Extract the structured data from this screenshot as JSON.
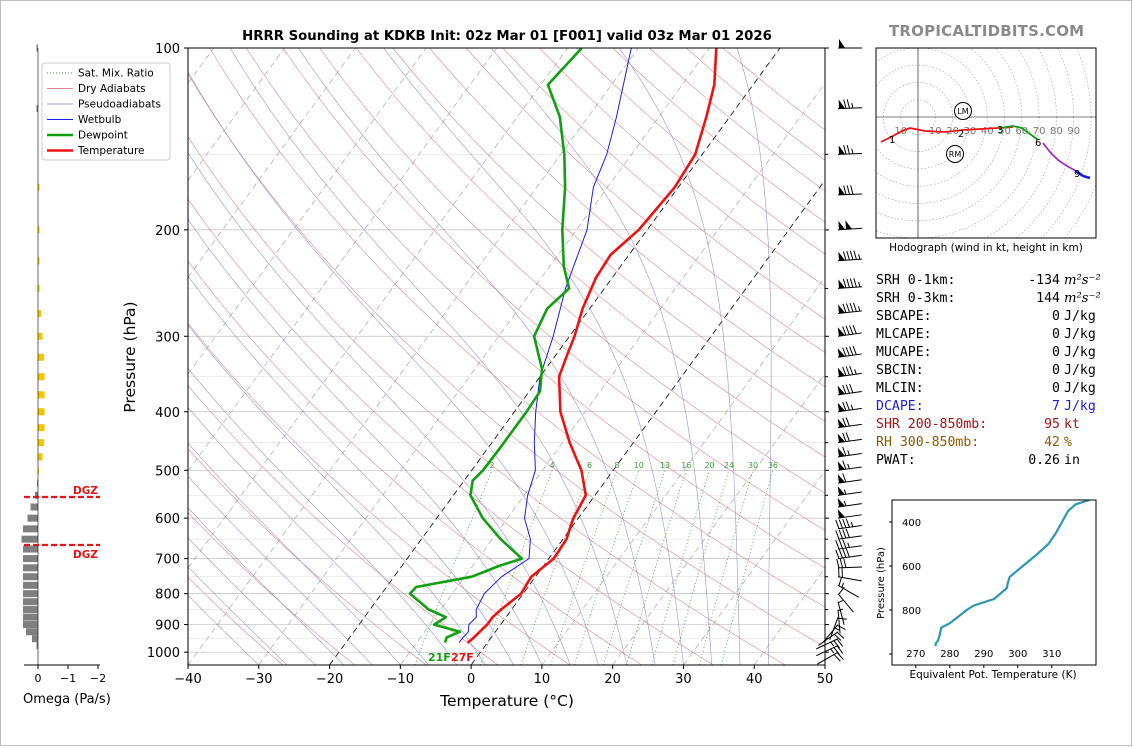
{
  "branding": {
    "site": "TROPICALTIDBITS.COM"
  },
  "colors": {
    "temperature": "#ee1111",
    "dewpoint": "#109f10",
    "wetbulb": "#1a1af0",
    "dry_adiabat": "#d35c6e",
    "moist_adiabat": "#8585b8",
    "mixing_ratio": "#3b9a3b",
    "isotherm_dash": "#000000",
    "hodo_low": "#ee1111",
    "hodo_mid": "#109f10",
    "hodo_upper": "#a030c0",
    "hodo_top": "#1a1af0",
    "theta_e": "#2e97b0",
    "omega_pos": "#f5c300",
    "omega_neg": "#7f7f7f",
    "dgz": "#ee1111",
    "dcape": "#1a1af0",
    "shear": "#aa1111",
    "rh": "#8a5a00"
  },
  "chart_data": [
    {
      "type": "line",
      "name": "skew-t",
      "title": "HRRR Sounding at KDKB Init: 02z Mar 01 [F001] valid 03z Mar 01 2026",
      "xlabel": "Temperature (°C)",
      "ylabel": "Pressure (hPa)",
      "xlim": [
        -40,
        50
      ],
      "ylim": [
        1050,
        100
      ],
      "y_scale": "log",
      "xticks": [
        -40,
        -30,
        -20,
        -10,
        0,
        10,
        20,
        30,
        40,
        50
      ],
      "xtick_labels": [
        "−40",
        "−30",
        "−20",
        "−10",
        "0",
        "10",
        "20",
        "30",
        "40",
        "50"
      ],
      "yticks": [
        100,
        200,
        300,
        400,
        500,
        600,
        700,
        800,
        900,
        1000
      ],
      "legend": [
        "Sat. Mix. Ratio",
        "Dry Adiabats",
        "Pseudoadiabats",
        "Wetbulb",
        "Dewpoint",
        "Temperature"
      ],
      "legend_position": "top-left",
      "mixing_ratio_labels": [
        "2",
        "4",
        "6",
        "8",
        "10",
        "13",
        "16",
        "20",
        "24",
        "30",
        "36"
      ],
      "mixing_ratio_values": [
        2,
        4,
        6,
        8,
        10,
        13,
        16,
        20,
        24,
        30,
        36
      ],
      "surface_labels": {
        "dewpoint": "21F",
        "temperature": "27F"
      },
      "series": [
        {
          "name": "Temperature",
          "values": [
            [
              964,
              -2.8
            ],
            [
              950,
              -2.5
            ],
            [
              925,
              -2.2
            ],
            [
              900,
              -1.9
            ],
            [
              875,
              -1.9
            ],
            [
              850,
              -1.5
            ],
            [
              800,
              -0.3
            ],
            [
              750,
              -0.6
            ],
            [
              700,
              0.7
            ],
            [
              650,
              0.5
            ],
            [
              600,
              -0.7
            ],
            [
              550,
              -1.3
            ],
            [
              500,
              -4.5
            ],
            [
              450,
              -9.0
            ],
            [
              400,
              -13.5
            ],
            [
              350,
              -17.3
            ],
            [
              320,
              -18.5
            ],
            [
              300,
              -19.3
            ],
            [
              270,
              -21.0
            ],
            [
              240,
              -22.3
            ],
            [
              220,
              -22.6
            ],
            [
              200,
              -21.2
            ],
            [
              170,
              -20.5
            ],
            [
              150,
              -21.0
            ],
            [
              130,
              -23.3
            ],
            [
              115,
              -25.5
            ],
            [
              100,
              -29.0
            ]
          ]
        },
        {
          "name": "Dewpoint",
          "values": [
            [
              964,
              -6.0
            ],
            [
              945,
              -6.3
            ],
            [
              925,
              -5.0
            ],
            [
              900,
              -9.4
            ],
            [
              875,
              -8.5
            ],
            [
              850,
              -11.7
            ],
            [
              800,
              -16.0
            ],
            [
              780,
              -15.8
            ],
            [
              750,
              -9.0
            ],
            [
              720,
              -6.3
            ],
            [
              700,
              -3.8
            ],
            [
              650,
              -8.8
            ],
            [
              600,
              -13.5
            ],
            [
              550,
              -17.6
            ],
            [
              520,
              -18.8
            ],
            [
              500,
              -18.4
            ],
            [
              460,
              -18.3
            ],
            [
              400,
              -18.3
            ],
            [
              370,
              -18.5
            ],
            [
              340,
              -20.5
            ],
            [
              300,
              -25.0
            ],
            [
              270,
              -26.0
            ],
            [
              250,
              -25.0
            ],
            [
              230,
              -28.0
            ],
            [
              200,
              -32.0
            ],
            [
              170,
              -36.0
            ],
            [
              150,
              -39.5
            ],
            [
              130,
              -44.0
            ],
            [
              115,
              -49.0
            ],
            [
              100,
              -48.0
            ]
          ]
        },
        {
          "name": "Wetbulb",
          "values": [
            [
              964,
              -4.0
            ],
            [
              950,
              -4.0
            ],
            [
              925,
              -3.8
            ],
            [
              900,
              -4.5
            ],
            [
              875,
              -4.2
            ],
            [
              850,
              -5.0
            ],
            [
              800,
              -5.5
            ],
            [
              750,
              -4.8
            ],
            [
              700,
              -2.8
            ],
            [
              650,
              -4.6
            ],
            [
              600,
              -7.6
            ],
            [
              550,
              -9.5
            ],
            [
              500,
              -11.0
            ],
            [
              450,
              -14.0
            ],
            [
              400,
              -17.0
            ],
            [
              350,
              -20.0
            ],
            [
              300,
              -22.3
            ],
            [
              250,
              -25.5
            ],
            [
              200,
              -28.5
            ],
            [
              170,
              -32.0
            ],
            [
              150,
              -33.5
            ],
            [
              130,
              -36.0
            ],
            [
              100,
              -41.0
            ]
          ]
        }
      ]
    },
    {
      "type": "line",
      "name": "hodograph",
      "xlabel": "Hodograph (wind in kt, height in km)",
      "ring_labels": [
        "10",
        "10",
        "20",
        "30",
        "40",
        "50",
        "60",
        "70",
        "80",
        "90"
      ],
      "height_labels": [
        "1",
        "2",
        "3",
        "6",
        "9"
      ],
      "markers": [
        "LM",
        "RM"
      ]
    },
    {
      "type": "line",
      "name": "theta-e",
      "xlabel": "Equivalent Pot. Temperature (K)",
      "ylabel": "Pressure (hPa)",
      "xlim": [
        263,
        323
      ],
      "ylim": [
        1050,
        300
      ],
      "xticks": [
        270,
        280,
        290,
        300,
        310
      ],
      "yticks": [
        400,
        600,
        800
      ],
      "series": [
        {
          "name": "theta-e",
          "values": [
            [
              964,
              275.8
            ],
            [
              950,
              275.9
            ],
            [
              940,
              276.5
            ],
            [
              920,
              276.9
            ],
            [
              900,
              277.2
            ],
            [
              880,
              277.5
            ],
            [
              860,
              280.0
            ],
            [
              800,
              285.0
            ],
            [
              780,
              287.0
            ],
            [
              750,
              293.0
            ],
            [
              700,
              296.8
            ],
            [
              680,
              297.0
            ],
            [
              650,
              297.6
            ],
            [
              600,
              301.5
            ],
            [
              550,
              305.4
            ],
            [
              500,
              309.0
            ],
            [
              450,
              311.2
            ],
            [
              400,
              313.0
            ],
            [
              350,
              314.8
            ],
            [
              320,
              317.0
            ],
            [
              300,
              321.0
            ]
          ]
        }
      ]
    },
    {
      "type": "bar",
      "name": "omega",
      "xlabel": "Omega (Pa/s)",
      "xlim": [
        0.4,
        -2
      ],
      "xticks": [
        0,
        -1,
        -2
      ],
      "xtick_labels": [
        "0",
        "−1",
        "−2"
      ],
      "dgz_label": "DGZ",
      "dgz_levels": [
        560,
        665
      ],
      "values": [
        [
          100,
          0.05
        ],
        [
          126,
          0.05
        ],
        [
          170,
          -0.05
        ],
        [
          200,
          -0.05
        ],
        [
          225,
          -0.05
        ],
        [
          250,
          -0.05
        ],
        [
          275,
          -0.1
        ],
        [
          300,
          -0.15
        ],
        [
          325,
          -0.2
        ],
        [
          350,
          -0.22
        ],
        [
          375,
          -0.22
        ],
        [
          400,
          -0.22
        ],
        [
          425,
          -0.22
        ],
        [
          450,
          -0.2
        ],
        [
          475,
          -0.15
        ],
        [
          500,
          -0.03
        ],
        [
          525,
          0.03
        ],
        [
          550,
          0.1
        ],
        [
          575,
          0.25
        ],
        [
          600,
          0.35
        ],
        [
          625,
          0.5
        ],
        [
          650,
          0.55
        ],
        [
          675,
          0.5
        ],
        [
          700,
          0.5
        ],
        [
          725,
          0.5
        ],
        [
          750,
          0.5
        ],
        [
          775,
          0.5
        ],
        [
          800,
          0.5
        ],
        [
          825,
          0.5
        ],
        [
          850,
          0.5
        ],
        [
          875,
          0.5
        ],
        [
          900,
          0.5
        ],
        [
          925,
          0.4
        ],
        [
          950,
          0.2
        ],
        [
          975,
          0.05
        ]
      ]
    }
  ],
  "winds": {
    "levels": [
      100,
      126,
      150,
      175,
      200,
      225,
      250,
      275,
      300,
      325,
      350,
      375,
      400,
      425,
      450,
      475,
      500,
      525,
      550,
      575,
      600,
      625,
      650,
      675,
      700,
      725,
      750,
      775,
      800,
      825,
      850,
      875,
      900,
      925,
      950,
      975,
      1000
    ],
    "speed_kt": [
      50,
      75,
      75,
      80,
      100,
      95,
      95,
      95,
      90,
      90,
      85,
      80,
      75,
      70,
      70,
      65,
      65,
      60,
      55,
      55,
      50,
      45,
      40,
      35,
      40,
      30,
      20,
      15,
      10,
      5,
      5,
      10,
      15,
      20,
      25,
      25,
      20
    ],
    "dir_deg": [
      270,
      268,
      268,
      268,
      266,
      266,
      266,
      264,
      262,
      262,
      262,
      262,
      262,
      262,
      262,
      262,
      262,
      262,
      262,
      262,
      262,
      262,
      262,
      262,
      262,
      268,
      280,
      300,
      320,
      345,
      355,
      20,
      40,
      55,
      65,
      65,
      60
    ]
  },
  "stats": [
    {
      "label": "SRH 0-1km:",
      "value": "-134",
      "unit": "m²s⁻²",
      "color": "#000000"
    },
    {
      "label": "SRH 0-3km:",
      "value": "144",
      "unit": "m²s⁻²",
      "color": "#000000"
    },
    {
      "label": "SBCAPE:",
      "value": "0",
      "unit": "J/kg",
      "color": "#000000"
    },
    {
      "label": "MLCAPE:",
      "value": "0",
      "unit": "J/kg",
      "color": "#000000"
    },
    {
      "label": "MUCAPE:",
      "value": "0",
      "unit": "J/kg",
      "color": "#000000"
    },
    {
      "label": "SBCIN:",
      "value": "0",
      "unit": "J/kg",
      "color": "#000000"
    },
    {
      "label": "MLCIN:",
      "value": "0",
      "unit": "J/kg",
      "color": "#000000"
    },
    {
      "label": "DCAPE:",
      "value": "7",
      "unit": "J/kg",
      "color": "#1a1af0"
    },
    {
      "label": "SHR 200-850mb:",
      "value": "95",
      "unit": "kt",
      "color": "#aa1111"
    },
    {
      "label": "RH 300-850mb:",
      "value": "42",
      "unit": "%",
      "color": "#8a5a00"
    },
    {
      "label": "PWAT:",
      "value": "0.26",
      "unit": "in",
      "color": "#000000"
    }
  ]
}
